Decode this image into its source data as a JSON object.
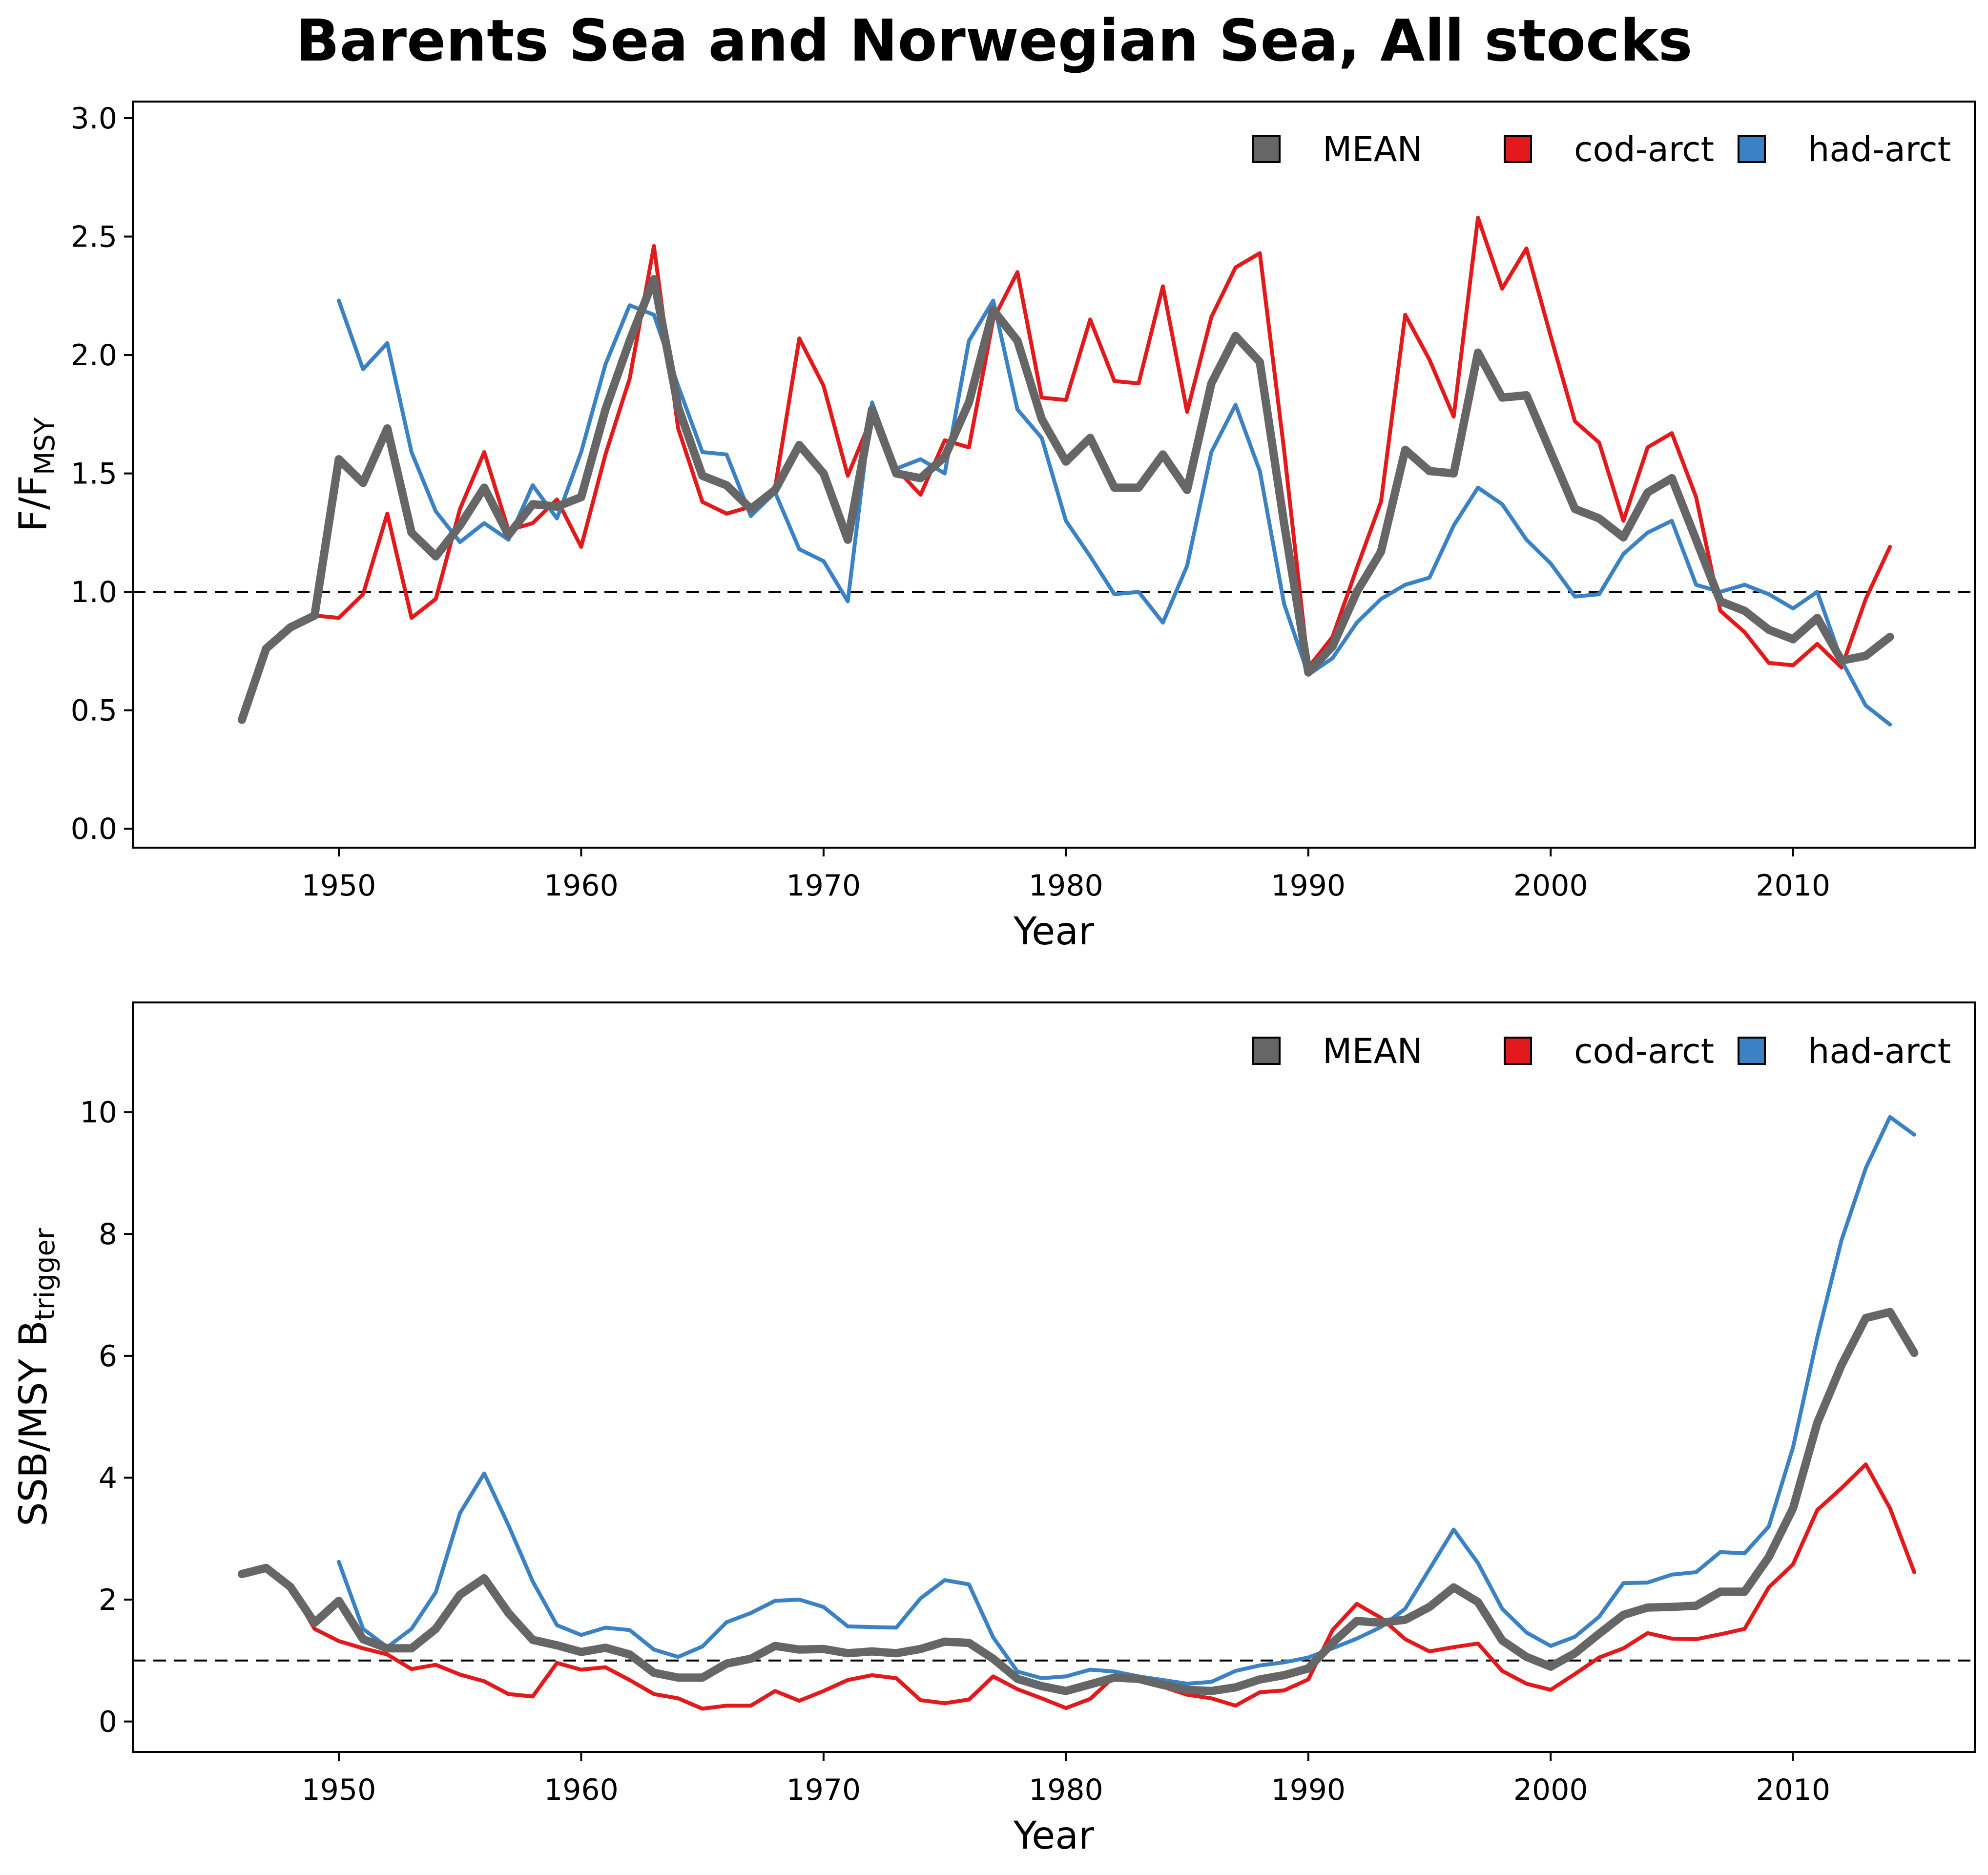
{
  "title": "Barents Sea and Norwegian Sea, All stocks",
  "colors": {
    "MEAN": "#666666",
    "cod-arct": "#e31a1c",
    "had-arct": "#3a82c4"
  },
  "chart_data": [
    {
      "type": "line",
      "ylabel_main": "F/F",
      "ylabel_sub": "MSY",
      "xlabel": "Year",
      "xlim": [
        1941.5,
        2017.5
      ],
      "ylim": [
        -0.08,
        3.07
      ],
      "xticks": [
        1950,
        1960,
        1970,
        1980,
        1990,
        2000,
        2010
      ],
      "yticks": [
        0.0,
        0.5,
        1.0,
        1.5,
        2.0,
        2.5,
        3.0
      ],
      "ytick_labels": [
        "0.0",
        "0.5",
        "1.0",
        "1.5",
        "2.0",
        "2.5",
        "3.0"
      ],
      "reference_line": 1.0,
      "legend": [
        "MEAN",
        "cod-arct",
        "had-arct"
      ],
      "series": [
        {
          "name": "MEAN",
          "x": [
            1946,
            1947,
            1948,
            1949,
            1950,
            1951,
            1952,
            1953,
            1954,
            1955,
            1956,
            1957,
            1958,
            1959,
            1960,
            1961,
            1962,
            1963,
            1964,
            1965,
            1966,
            1967,
            1968,
            1969,
            1970,
            1971,
            1972,
            1973,
            1974,
            1975,
            1976,
            1977,
            1978,
            1979,
            1980,
            1981,
            1982,
            1983,
            1984,
            1985,
            1986,
            1987,
            1988,
            1989,
            1990,
            1991,
            1992,
            1993,
            1994,
            1995,
            1996,
            1997,
            1998,
            1999,
            2000,
            2001,
            2002,
            2003,
            2004,
            2005,
            2006,
            2007,
            2008,
            2009,
            2010,
            2011,
            2012,
            2013,
            2014
          ],
          "y": [
            0.46,
            0.76,
            0.85,
            0.9,
            1.56,
            1.46,
            1.69,
            1.25,
            1.15,
            1.28,
            1.44,
            1.24,
            1.37,
            1.36,
            1.4,
            1.77,
            2.06,
            2.32,
            1.78,
            1.49,
            1.45,
            1.35,
            1.43,
            1.62,
            1.5,
            1.22,
            1.77,
            1.5,
            1.48,
            1.57,
            1.8,
            2.19,
            2.06,
            1.73,
            1.55,
            1.65,
            1.44,
            1.44,
            1.58,
            1.43,
            1.88,
            2.08,
            1.97,
            1.29,
            0.66,
            0.77,
            1.0,
            1.17,
            1.6,
            1.51,
            1.5,
            2.01,
            1.82,
            1.83,
            1.59,
            1.35,
            1.31,
            1.23,
            1.42,
            1.48,
            1.22,
            0.96,
            0.92,
            0.84,
            0.8,
            0.89,
            0.71,
            0.73,
            0.81
          ]
        },
        {
          "name": "cod-arct",
          "x": [
            1946,
            1947,
            1948,
            1949,
            1950,
            1951,
            1952,
            1953,
            1954,
            1955,
            1956,
            1957,
            1958,
            1959,
            1960,
            1961,
            1962,
            1963,
            1964,
            1965,
            1966,
            1967,
            1968,
            1969,
            1970,
            1971,
            1972,
            1973,
            1974,
            1975,
            1976,
            1977,
            1978,
            1979,
            1980,
            1981,
            1982,
            1983,
            1984,
            1985,
            1986,
            1987,
            1988,
            1989,
            1990,
            1991,
            1992,
            1993,
            1994,
            1995,
            1996,
            1997,
            1998,
            1999,
            2000,
            2001,
            2002,
            2003,
            2004,
            2005,
            2006,
            2007,
            2008,
            2009,
            2010,
            2011,
            2012,
            2013,
            2014
          ],
          "y": [
            0.46,
            0.76,
            0.85,
            0.9,
            0.89,
            0.99,
            1.33,
            0.89,
            0.97,
            1.35,
            1.59,
            1.26,
            1.29,
            1.39,
            1.19,
            1.58,
            1.9,
            2.46,
            1.69,
            1.38,
            1.33,
            1.36,
            1.44,
            2.07,
            1.87,
            1.49,
            1.74,
            1.52,
            1.41,
            1.64,
            1.61,
            2.15,
            2.35,
            1.82,
            1.81,
            2.15,
            1.89,
            1.88,
            2.29,
            1.76,
            2.16,
            2.37,
            2.43,
            1.6,
            0.68,
            0.81,
            1.1,
            1.38,
            2.17,
            1.98,
            1.74,
            2.58,
            2.28,
            2.45,
            2.08,
            1.72,
            1.63,
            1.3,
            1.61,
            1.67,
            1.4,
            0.92,
            0.83,
            0.7,
            0.69,
            0.78,
            0.68,
            0.97,
            1.19
          ]
        },
        {
          "name": "had-arct",
          "x": [
            1950,
            1951,
            1952,
            1953,
            1954,
            1955,
            1956,
            1957,
            1958,
            1959,
            1960,
            1961,
            1962,
            1963,
            1964,
            1965,
            1966,
            1967,
            1968,
            1969,
            1970,
            1971,
            1972,
            1973,
            1974,
            1975,
            1976,
            1977,
            1978,
            1979,
            1980,
            1981,
            1982,
            1983,
            1984,
            1985,
            1986,
            1987,
            1988,
            1989,
            1990,
            1991,
            1992,
            1993,
            1994,
            1995,
            1996,
            1997,
            1998,
            1999,
            2000,
            2001,
            2002,
            2003,
            2004,
            2005,
            2006,
            2007,
            2008,
            2009,
            2010,
            2011,
            2012,
            2013,
            2014
          ],
          "y": [
            2.23,
            1.94,
            2.05,
            1.59,
            1.34,
            1.21,
            1.29,
            1.22,
            1.45,
            1.31,
            1.59,
            1.96,
            2.21,
            2.17,
            1.87,
            1.59,
            1.58,
            1.32,
            1.42,
            1.18,
            1.13,
            0.96,
            1.8,
            1.52,
            1.56,
            1.5,
            2.06,
            2.23,
            1.77,
            1.65,
            1.3,
            1.15,
            0.99,
            1.0,
            0.87,
            1.11,
            1.59,
            1.79,
            1.51,
            0.95,
            0.65,
            0.72,
            0.87,
            0.97,
            1.03,
            1.06,
            1.28,
            1.44,
            1.37,
            1.22,
            1.12,
            0.98,
            0.99,
            1.16,
            1.25,
            1.3,
            1.03,
            1.0,
            1.03,
            0.99,
            0.93,
            1.0,
            0.71,
            0.52,
            0.44
          ]
        }
      ]
    },
    {
      "type": "line",
      "ylabel_main": "SSB/MSY B",
      "ylabel_sub": "trigger",
      "xlabel": "Year",
      "xlim": [
        1941.5,
        2017.5
      ],
      "ylim": [
        -0.5,
        11.8
      ],
      "xticks": [
        1950,
        1960,
        1970,
        1980,
        1990,
        2000,
        2010
      ],
      "yticks": [
        0,
        2,
        4,
        6,
        8,
        10
      ],
      "ytick_labels": [
        "0",
        "2",
        "4",
        "6",
        "8",
        "10"
      ],
      "reference_line": 1.0,
      "legend": [
        "MEAN",
        "cod-arct",
        "had-arct"
      ],
      "series": [
        {
          "name": "MEAN",
          "x": [
            1946,
            1947,
            1948,
            1949,
            1950,
            1951,
            1952,
            1953,
            1954,
            1955,
            1956,
            1957,
            1958,
            1959,
            1960,
            1961,
            1962,
            1963,
            1964,
            1965,
            1966,
            1967,
            1968,
            1969,
            1970,
            1971,
            1972,
            1973,
            1974,
            1975,
            1976,
            1977,
            1978,
            1979,
            1980,
            1981,
            1982,
            1983,
            1984,
            1985,
            1986,
            1987,
            1988,
            1989,
            1990,
            1991,
            1992,
            1993,
            1994,
            1995,
            1996,
            1997,
            1998,
            1999,
            2000,
            2001,
            2002,
            2003,
            2004,
            2005,
            2006,
            2007,
            2008,
            2009,
            2010,
            2011,
            2012,
            2013,
            2014,
            2015
          ],
          "y": [
            2.42,
            2.52,
            2.21,
            1.62,
            1.98,
            1.35,
            1.2,
            1.2,
            1.52,
            2.08,
            2.35,
            1.78,
            1.34,
            1.25,
            1.14,
            1.21,
            1.1,
            0.8,
            0.72,
            0.72,
            0.95,
            1.03,
            1.24,
            1.18,
            1.19,
            1.12,
            1.15,
            1.12,
            1.19,
            1.31,
            1.29,
            1.03,
            0.7,
            0.58,
            0.5,
            0.61,
            0.72,
            0.7,
            0.6,
            0.52,
            0.5,
            0.56,
            0.69,
            0.76,
            0.87,
            1.29,
            1.65,
            1.62,
            1.67,
            1.88,
            2.2,
            1.96,
            1.33,
            1.06,
            0.9,
            1.12,
            1.44,
            1.75,
            1.87,
            1.88,
            1.9,
            2.13,
            2.13,
            2.7,
            3.5,
            4.9,
            5.85,
            6.62,
            6.72,
            6.05
          ]
        },
        {
          "name": "cod-arct",
          "x": [
            1946,
            1947,
            1948,
            1949,
            1950,
            1951,
            1952,
            1953,
            1954,
            1955,
            1956,
            1957,
            1958,
            1959,
            1960,
            1961,
            1962,
            1963,
            1964,
            1965,
            1966,
            1967,
            1968,
            1969,
            1970,
            1971,
            1972,
            1973,
            1974,
            1975,
            1976,
            1977,
            1978,
            1979,
            1980,
            1981,
            1982,
            1983,
            1984,
            1985,
            1986,
            1987,
            1988,
            1989,
            1990,
            1991,
            1992,
            1993,
            1994,
            1995,
            1996,
            1997,
            1998,
            1999,
            2000,
            2001,
            2002,
            2003,
            2004,
            2005,
            2006,
            2007,
            2008,
            2009,
            2010,
            2011,
            2012,
            2013,
            2014,
            2015
          ],
          "y": [
            2.42,
            2.52,
            2.21,
            1.52,
            1.32,
            1.2,
            1.1,
            0.86,
            0.93,
            0.77,
            0.66,
            0.45,
            0.41,
            0.96,
            0.85,
            0.89,
            0.68,
            0.45,
            0.38,
            0.21,
            0.26,
            0.26,
            0.5,
            0.34,
            0.5,
            0.68,
            0.76,
            0.71,
            0.35,
            0.3,
            0.36,
            0.74,
            0.53,
            0.38,
            0.22,
            0.37,
            0.74,
            0.68,
            0.57,
            0.44,
            0.38,
            0.26,
            0.48,
            0.51,
            0.69,
            1.5,
            1.93,
            1.7,
            1.35,
            1.15,
            1.22,
            1.28,
            0.83,
            0.62,
            0.52,
            0.78,
            1.05,
            1.2,
            1.45,
            1.36,
            1.35,
            1.43,
            1.52,
            2.2,
            2.58,
            3.47,
            3.83,
            4.22,
            3.5,
            2.45
          ]
        },
        {
          "name": "had-arct",
          "x": [
            1950,
            1951,
            1952,
            1953,
            1954,
            1955,
            1956,
            1957,
            1958,
            1959,
            1960,
            1961,
            1962,
            1963,
            1964,
            1965,
            1966,
            1967,
            1968,
            1969,
            1970,
            1971,
            1972,
            1973,
            1974,
            1975,
            1976,
            1977,
            1978,
            1979,
            1980,
            1981,
            1982,
            1983,
            1984,
            1985,
            1986,
            1987,
            1988,
            1989,
            1990,
            1991,
            1992,
            1993,
            1994,
            1995,
            1996,
            1997,
            1998,
            1999,
            2000,
            2001,
            2002,
            2003,
            2004,
            2005,
            2006,
            2007,
            2008,
            2009,
            2010,
            2011,
            2012,
            2013,
            2014,
            2015
          ],
          "y": [
            2.62,
            1.52,
            1.22,
            1.52,
            2.12,
            3.42,
            4.07,
            3.22,
            2.3,
            1.58,
            1.42,
            1.54,
            1.5,
            1.18,
            1.06,
            1.23,
            1.63,
            1.78,
            1.98,
            2.0,
            1.88,
            1.56,
            1.55,
            1.54,
            2.02,
            2.32,
            2.25,
            1.38,
            0.82,
            0.71,
            0.74,
            0.85,
            0.82,
            0.74,
            0.68,
            0.62,
            0.65,
            0.83,
            0.92,
            0.97,
            1.05,
            1.2,
            1.36,
            1.55,
            1.85,
            2.5,
            3.15,
            2.6,
            1.85,
            1.46,
            1.24,
            1.39,
            1.72,
            2.27,
            2.28,
            2.41,
            2.45,
            2.78,
            2.76,
            3.2,
            4.5,
            6.3,
            7.9,
            9.08,
            9.92,
            9.63
          ]
        }
      ]
    }
  ]
}
